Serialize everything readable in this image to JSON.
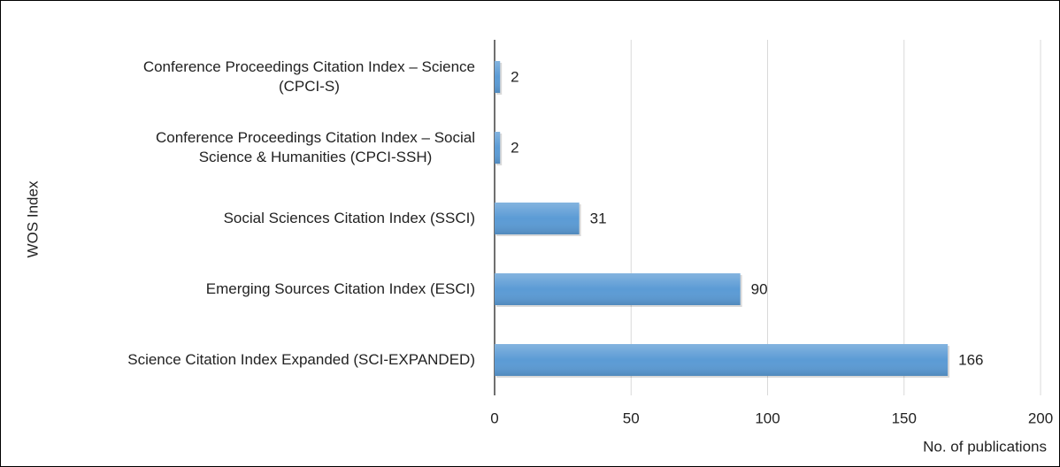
{
  "chart_data": {
    "type": "bar",
    "orientation": "horizontal",
    "x_label": "No. of publications",
    "y_label": "WOS Index",
    "categories": [
      "Conference Proceedings Citation Index – Science\n(CPCI-S)",
      "Conference Proceedings Citation Index – Social\nScience & Humanities (CPCI-SSH)",
      "Social Sciences Citation Index (SSCI)",
      "Emerging Sources Citation Index (ESCI)",
      "Science Citation Index Expanded (SCI-EXPANDED)"
    ],
    "values": [
      2,
      2,
      31,
      90,
      166
    ],
    "color": "#5b9bd5",
    "xlim": [
      0,
      200
    ],
    "xticks": [
      0,
      50,
      100,
      150,
      200
    ],
    "grid": true
  }
}
